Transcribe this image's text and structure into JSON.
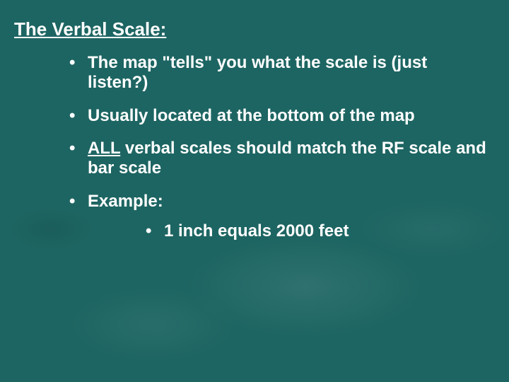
{
  "slide": {
    "background_color": "#1d6562",
    "text_color": "#ffffff",
    "font_family": "Comic Sans MS",
    "title_underlined": "The Verbal Scale",
    "title_suffix": ":",
    "title_fontsize": 26,
    "body_fontsize": 24,
    "bullets": [
      {
        "text": "The map \"tells\" you what the scale is (just listen?)"
      },
      {
        "text": "Usually located at the bottom of the map"
      },
      {
        "prefix_underlined": "ALL",
        "text_rest": " verbal scales should match the RF scale and bar scale"
      },
      {
        "text": "Example:",
        "sub": [
          {
            "text": "1 inch equals 2000 feet"
          }
        ]
      }
    ]
  }
}
